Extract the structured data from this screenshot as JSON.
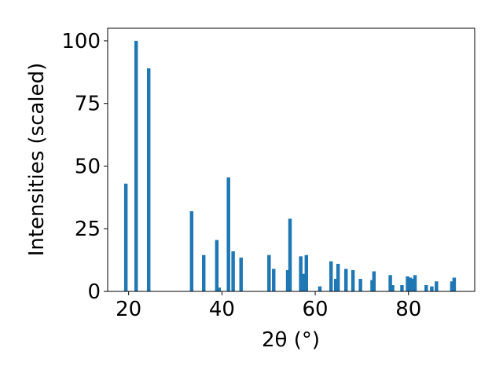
{
  "chart_data": {
    "type": "bar",
    "title": "",
    "xlabel": "2θ (°)",
    "ylabel": "Intensities (scaled)",
    "xlim": [
      15.5,
      94.2
    ],
    "ylim": [
      0,
      105
    ],
    "x_ticks": [
      20,
      40,
      60,
      80
    ],
    "y_ticks": [
      0,
      25,
      50,
      75,
      100
    ],
    "grid": false,
    "legend": "none",
    "bar_color": "#1f77b4",
    "bar_width": 0.75,
    "x": [
      19.4,
      21.6,
      24.3,
      33.5,
      36.1,
      38.9,
      39.4,
      41.4,
      42.4,
      44.1,
      50.1,
      51.1,
      54.1,
      54.6,
      56.9,
      57.6,
      58.1,
      61.0,
      63.4,
      64.4,
      64.9,
      66.6,
      68.1,
      69.7,
      72.2,
      72.6,
      76.1,
      76.6,
      78.6,
      79.8,
      80.4,
      80.8,
      81.4,
      83.8,
      85.0,
      86.0,
      89.3,
      89.8
    ],
    "values": [
      43,
      100,
      89,
      32,
      14.5,
      20.5,
      1.5,
      45.5,
      16,
      13.5,
      14.5,
      9,
      8.5,
      29,
      14,
      7,
      14.5,
      2,
      12,
      5,
      11,
      9,
      8.5,
      5,
      4.5,
      8,
      6.5,
      2.5,
      2.5,
      6,
      5.5,
      5,
      6.5,
      2.5,
      2,
      4,
      4,
      5.5
    ]
  }
}
